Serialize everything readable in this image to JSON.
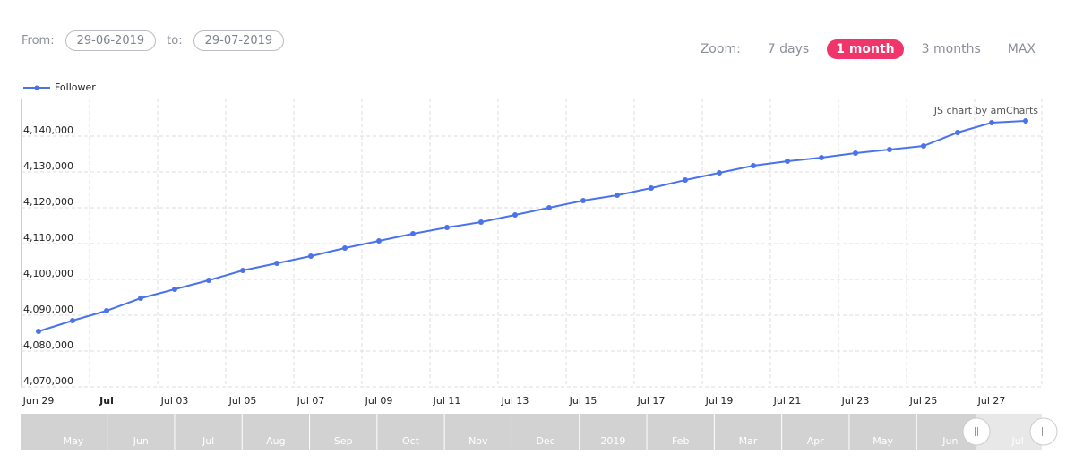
{
  "header": {
    "from_label": "From:",
    "from_value": "29-06-2019",
    "to_label": "to:",
    "to_value": "29-07-2019",
    "zoom_label": "Zoom:",
    "zoom_options": [
      "7 days",
      "1 month",
      "3 months",
      "MAX"
    ],
    "zoom_active": 1
  },
  "chart_data": {
    "type": "line",
    "credit": "JS chart by amCharts",
    "categories": [
      "Jun 29",
      null,
      "Jul",
      null,
      "Jul 03",
      null,
      "Jul 05",
      null,
      "Jul 07",
      null,
      "Jul 09",
      null,
      "Jul 11",
      null,
      "Jul 13",
      null,
      "Jul 15",
      null,
      "Jul 17",
      null,
      "Jul 19",
      null,
      "Jul 21",
      null,
      "Jul 23",
      null,
      "Jul 25",
      null,
      "Jul 27",
      null
    ],
    "series": [
      {
        "name": "Follower",
        "color": "#4a72ec",
        "values": [
          4085500,
          4088500,
          4091250,
          4094750,
          4097250,
          4099750,
          4102500,
          4104500,
          4106500,
          4108750,
          4110750,
          4112750,
          4114500,
          4116000,
          4118000,
          4120000,
          4122000,
          4123500,
          4125500,
          4127750,
          4129750,
          4131750,
          4133000,
          4134000,
          4135250,
          4136250,
          4137250,
          4141000,
          4143750,
          4144250
        ]
      }
    ],
    "ylim": [
      4070000,
      4150000
    ],
    "yticks": [
      {
        "value": 4070000,
        "label": "4,070,000"
      },
      {
        "value": 4080000,
        "label": "4,080,000"
      },
      {
        "value": 4090000,
        "label": "4,090,000"
      },
      {
        "value": 4100000,
        "label": "4,100,000"
      },
      {
        "value": 4110000,
        "label": "4,110,000"
      },
      {
        "value": 4120000,
        "label": "4,120,000"
      },
      {
        "value": 4130000,
        "label": "4,130,000"
      },
      {
        "value": 4140000,
        "label": "4,140,000"
      }
    ],
    "grid": true,
    "legend": "top-left"
  },
  "scrollbar": {
    "labels": [
      "May",
      "Jun",
      "Jul",
      "Aug",
      "Sep",
      "Oct",
      "Nov",
      "Dec",
      "2019",
      "Feb",
      "Mar",
      "Apr",
      "May",
      "Jun",
      "Jul"
    ]
  }
}
